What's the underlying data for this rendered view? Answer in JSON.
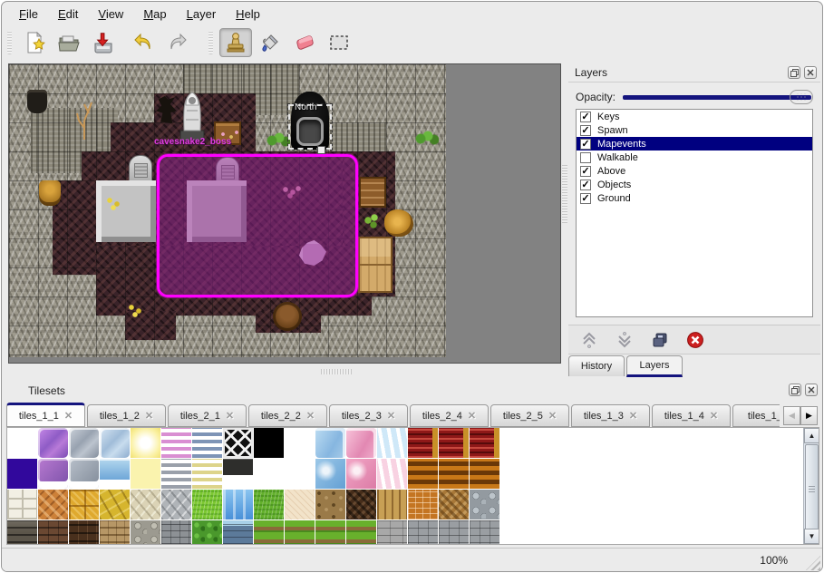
{
  "menu": {
    "items": [
      {
        "label": "File"
      },
      {
        "label": "Edit"
      },
      {
        "label": "View"
      },
      {
        "label": "Map"
      },
      {
        "label": "Layer"
      },
      {
        "label": "Help"
      }
    ]
  },
  "toolbar": {
    "icons": [
      "new-file",
      "open-file",
      "save-file",
      "undo",
      "redo",
      "stamp-tool",
      "fill-tool",
      "eraser-tool",
      "select-tool"
    ],
    "active_tool": "stamp-tool"
  },
  "map": {
    "region_label": "cavesnake2_boss",
    "exit_label": "North",
    "selection_color": "#ff00ff"
  },
  "layers_panel": {
    "title": "Layers",
    "opacity_label": "Opacity:",
    "layers": [
      {
        "label": "Keys",
        "checked": true,
        "selected": false
      },
      {
        "label": "Spawn",
        "checked": true,
        "selected": false
      },
      {
        "label": "Mapevents",
        "checked": true,
        "selected": true
      },
      {
        "label": "Walkable",
        "checked": false,
        "selected": false
      },
      {
        "label": "Above",
        "checked": true,
        "selected": false
      },
      {
        "label": "Objects",
        "checked": true,
        "selected": false
      },
      {
        "label": "Ground",
        "checked": true,
        "selected": false
      }
    ],
    "tools": [
      "raise-layer",
      "lower-layer",
      "duplicate-layer",
      "delete-layer"
    ],
    "tabs": [
      {
        "label": "History",
        "active": false
      },
      {
        "label": "Layers",
        "active": true
      }
    ],
    "highlight_color": "#000080"
  },
  "tilesets_panel": {
    "title": "Tilesets",
    "tabs": [
      {
        "label": "tiles_1_1",
        "active": true
      },
      {
        "label": "tiles_1_2",
        "active": false
      },
      {
        "label": "tiles_2_1",
        "active": false
      },
      {
        "label": "tiles_2_2",
        "active": false
      },
      {
        "label": "tiles_2_3",
        "active": false
      },
      {
        "label": "tiles_2_4",
        "active": false
      },
      {
        "label": "tiles_2_5",
        "active": false
      },
      {
        "label": "tiles_1_3",
        "active": false
      },
      {
        "label": "tiles_1_4",
        "active": false
      },
      {
        "label": "tiles_1_",
        "active": false
      }
    ],
    "grid": [
      [
        "white",
        "glass-purple",
        "glass-gray",
        "glass-blue",
        "glow-yellow",
        "stripe-pink",
        "stripe-blue",
        "lattice",
        "black",
        "white",
        "glass-blue2",
        "glass-pink2",
        "zigzag-blue",
        "curtain-red",
        "curtain-red",
        "curtain-red"
      ],
      [
        "indigo",
        "glass-purple-sm",
        "glass-gray-sm",
        "water-sm",
        "pale-yellow",
        "stripe-gray",
        "stripe-yellow",
        "sign-dark",
        "white",
        "white",
        "pane-blue",
        "pane-pink",
        "zigzag-pink",
        "curtain-orange",
        "curtain-orange",
        "curtain-orange"
      ],
      [
        "stone-blocks",
        "cobble-orange",
        "tiles-gold",
        "flagstone-yellow",
        "cobble-beige",
        "cobble-gray",
        "grass-bright",
        "water",
        "grass-green",
        "sand-pale",
        "dirt-spots",
        "herringbone-dark",
        "planks-tan",
        "brick-orange",
        "herringbone-brown",
        "stones-gray"
      ],
      [
        "wall-dark",
        "wall-brown",
        "wall-darkbrown",
        "wall-tan",
        "wall-cobble",
        "wall-gray",
        "hedge",
        "wall-blue",
        "field-rows",
        "field-rows",
        "field-rows",
        "field-rows",
        "planks-gray",
        "wall-gray2",
        "wall-gray2",
        "wall-gray2"
      ]
    ]
  },
  "statusbar": {
    "zoom": "100%"
  }
}
